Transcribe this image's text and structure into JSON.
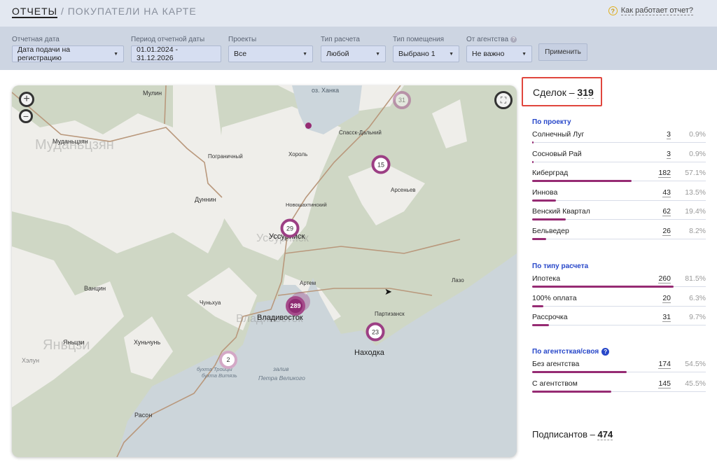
{
  "header": {
    "root": "ОТЧЕТЫ",
    "separator": " / ",
    "title": "ПОКУПАТЕЛИ НА КАРТЕ",
    "help": "Как работает отчет?"
  },
  "filters": [
    {
      "label": "Отчетная дата",
      "value": "Дата подачи на регистрацию",
      "dropdown": true
    },
    {
      "label": "Период отчетной даты",
      "value": "01.01.2024 - 31.12.2026",
      "dropdown": false
    },
    {
      "label": "Проекты",
      "value": "Все",
      "dropdown": true
    },
    {
      "label": "Тип расчета",
      "value": "Любой",
      "dropdown": true
    },
    {
      "label": "Тип помещения",
      "value": "Выбрано 1",
      "dropdown": true
    },
    {
      "label": "От агентства",
      "value": "Не важно",
      "dropdown": true,
      "help": true
    }
  ],
  "apply_label": "Применить",
  "map": {
    "zoom_in": "+",
    "zoom_out": "−",
    "labels": {
      "mulin": "Мулин",
      "mudan": "Муданьцзян",
      "mudan_big": "Муданьцзян",
      "pogr": "Пограничный",
      "dunnin": "Дуннин",
      "khanka": "оз. Ханка",
      "spassk": "Спасск-Дальний",
      "khorol": "Хороль",
      "arsen": "Арсеньев",
      "novosh": "Новошахтинский",
      "uss": "Уссурийск",
      "uss_big": "Уссурийск",
      "vancin": "Ванцин",
      "chunhua": "Чуньхуа",
      "yanczi": "Яньцзи",
      "yanczi_big": "Яньцзи",
      "khelun": "Хэлун",
      "hunchun": "Хуньчунь",
      "rason": "Расон",
      "troica": "бухта Троицы",
      "vityaz": "бухта Витязь",
      "artem": "Артем",
      "vlad": "Владивосток",
      "vlad_big": "Владивосток",
      "partiz": "Партизанск",
      "lazo": "Лазо",
      "nakhodka": "Находка",
      "zaliv": "залив",
      "petra": "Петра Великого"
    },
    "clusters": [
      {
        "count": "31",
        "faded": true
      },
      {
        "count": "15"
      },
      {
        "count": "29"
      },
      {
        "count": "289",
        "filled": true
      },
      {
        "count": "23"
      },
      {
        "count": "2",
        "faded": true
      }
    ]
  },
  "summary": {
    "deals_label": "Сделок – ",
    "deals_value": "319",
    "signers_label": "Подписантов – ",
    "signers_value": "474"
  },
  "sections": [
    {
      "title": "По проекту",
      "rows": [
        {
          "name": "Солнечный Луг",
          "count": "3",
          "pct": "0.9%",
          "value": 0.9
        },
        {
          "name": "Сосновый Рай",
          "count": "3",
          "pct": "0.9%",
          "value": 0.9
        },
        {
          "name": "Киберград",
          "count": "182",
          "pct": "57.1%",
          "value": 57.1
        },
        {
          "name": "Иннова",
          "count": "43",
          "pct": "13.5%",
          "value": 13.5
        },
        {
          "name": "Венский Квартал",
          "count": "62",
          "pct": "19.4%",
          "value": 19.4
        },
        {
          "name": "Бельведер",
          "count": "26",
          "pct": "8.2%",
          "value": 8.2
        }
      ]
    },
    {
      "title": "По типу расчета",
      "rows": [
        {
          "name": "Ипотека",
          "count": "260",
          "pct": "81.5%",
          "value": 81.5
        },
        {
          "name": "100% оплата",
          "count": "20",
          "pct": "6.3%",
          "value": 6.3
        },
        {
          "name": "Рассрочка",
          "count": "31",
          "pct": "9.7%",
          "value": 9.7
        }
      ]
    },
    {
      "title": "По агентсткая/своя",
      "help": true,
      "rows": [
        {
          "name": "Без агентства",
          "count": "174",
          "pct": "54.5%",
          "value": 54.5
        },
        {
          "name": "С агентством",
          "count": "145",
          "pct": "45.5%",
          "value": 45.5
        }
      ]
    }
  ],
  "colors": {
    "bar": "#962b73",
    "accent": "#2747c9",
    "highlight": "#e0463d"
  }
}
